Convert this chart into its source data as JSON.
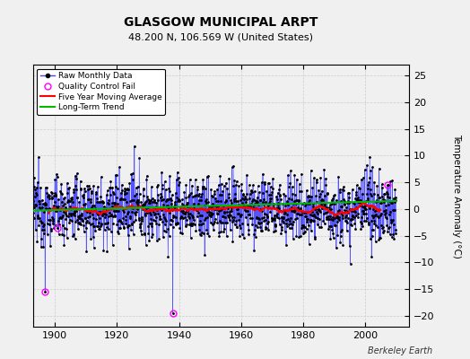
{
  "title": "GLASGOW MUNICIPAL ARPT",
  "subtitle": "48.200 N, 106.569 W (United States)",
  "ylabel": "Temperature Anomaly (°C)",
  "credit": "Berkeley Earth",
  "ylim": [
    -22,
    27
  ],
  "yticks": [
    -20,
    -15,
    -10,
    -5,
    0,
    5,
    10,
    15,
    20,
    25
  ],
  "xlim": [
    1893,
    2014
  ],
  "xticks": [
    1900,
    1920,
    1940,
    1960,
    1980,
    2000
  ],
  "bg_color": "#f0f0f0",
  "plot_bg_color": "#f0f0f0",
  "raw_line_color": "#4444ff",
  "raw_marker_color": "#000000",
  "qc_fail_color": "#ff00ff",
  "moving_avg_color": "#ff0000",
  "trend_color": "#00bb00",
  "seed": 12345,
  "n_points": 1400,
  "start_year": 1893.0,
  "end_year": 2009.83
}
